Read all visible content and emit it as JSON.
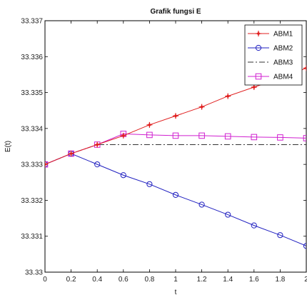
{
  "chart_data": {
    "type": "line",
    "title": "Grafik fungsi E",
    "xlabel": "t",
    "ylabel": "E(t)",
    "xlim": [
      0,
      2
    ],
    "ylim": [
      33.33,
      33.337
    ],
    "xticks": [
      "0",
      "0.2",
      "0.4",
      "0.6",
      "0.8",
      "1",
      "1.2",
      "1.4",
      "1.6",
      "1.8",
      "2"
    ],
    "yticks": [
      "33.33",
      "33.331",
      "33.332",
      "33.333",
      "33.334",
      "33.335",
      "33.336",
      "33.337"
    ],
    "grid": false,
    "legend_position": "top-right",
    "x": [
      0,
      0.2,
      0.4,
      0.6,
      0.8,
      1.0,
      1.2,
      1.4,
      1.6,
      1.8,
      2.0
    ],
    "series": [
      {
        "name": "ABM1",
        "color": "#e02020",
        "marker": "plus-star",
        "line": "solid",
        "values": [
          33.333,
          33.3333,
          33.33355,
          33.3338,
          33.3341,
          33.33435,
          33.3346,
          33.3349,
          33.33515,
          33.3354,
          33.33568
        ]
      },
      {
        "name": "ABM2",
        "color": "#2020c0",
        "marker": "circle",
        "line": "solid",
        "values": [
          33.333,
          33.3333,
          33.333,
          33.3327,
          33.33245,
          33.33215,
          33.33188,
          33.3316,
          33.3313,
          33.33103,
          33.33073
        ]
      },
      {
        "name": "ABM3",
        "color": "#333333",
        "marker": "none",
        "line": "dashdot",
        "values": [
          33.333,
          33.3333,
          33.33355,
          33.33355,
          33.33355,
          33.33355,
          33.33355,
          33.33355,
          33.33355,
          33.33355,
          33.33355
        ]
      },
      {
        "name": "ABM4",
        "color": "#d020d0",
        "marker": "square",
        "line": "solid",
        "values": [
          33.333,
          33.3333,
          33.33355,
          33.33385,
          33.33382,
          33.3338,
          33.3338,
          33.33378,
          33.33376,
          33.33375,
          33.33373
        ]
      }
    ]
  }
}
